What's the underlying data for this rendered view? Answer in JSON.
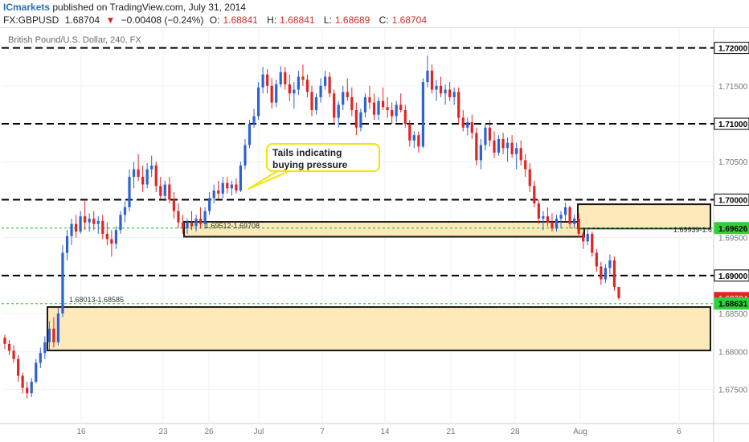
{
  "header": {
    "brand": "ICmarkets",
    "published_text": "published on TradingView.com, July 31, 2014",
    "symbol": "FX:GBPUSD",
    "last": "1.68704",
    "change": "−0.00408 (−0.24%)",
    "open_label": "O:",
    "open": "1.68841",
    "high_label": "H:",
    "high": "1.68841",
    "low_label": "L:",
    "low": "1.68689",
    "close_label": "C:",
    "close": "1.68704"
  },
  "chart_subtitle": "British Pound/U.S. Dollar, 240, FX",
  "annotation": {
    "callout_text": "Tails indicating buying pressure"
  },
  "colors": {
    "up": "#2d62d6",
    "down": "#e02424",
    "zone_fill": "#fde9b9",
    "zone_border": "#1a1a1a",
    "dashed_level": "#000000",
    "green_level": "#2fd13a",
    "callout_border": "#f2e600",
    "last_price_bg": "#e02424"
  },
  "chart_data": {
    "type": "candlestick",
    "x_ticks": [
      "16",
      "23",
      "26",
      "Jul",
      "7",
      "14",
      "21",
      "28",
      "Aug",
      "6"
    ],
    "y_ticks": [
      "1.67500",
      "1.68000",
      "1.68500",
      "1.69000",
      "1.69500",
      "1.70000",
      "1.70500",
      "1.71000",
      "1.71500",
      "1.72000"
    ],
    "ylim": [
      1.6705,
      1.7225
    ],
    "horizontal_levels": [
      {
        "value": "1.72000",
        "style": "dashed"
      },
      {
        "value": "1.71000",
        "style": "dashed"
      },
      {
        "value": "1.70000",
        "style": "dashed"
      },
      {
        "value": "1.69000",
        "style": "dashed"
      },
      {
        "value": "1.69626",
        "style": "green-dotted"
      },
      {
        "value": "1.68631",
        "style": "green-dotted"
      }
    ],
    "zones": [
      {
        "label": "1.69512-1.69708",
        "low": 1.69512,
        "high": 1.69708
      },
      {
        "label": "1.69939-1.6",
        "low": 1.6962,
        "high": 1.6994
      },
      {
        "label": "1.68013-1.68585",
        "low": 1.68013,
        "high": 1.68585
      }
    ],
    "price_labels": [
      {
        "text": "1.72000",
        "value": 1.72,
        "kind": "level"
      },
      {
        "text": "1.71000",
        "value": 1.71,
        "kind": "level"
      },
      {
        "text": "1.70000",
        "value": 1.7,
        "kind": "level"
      },
      {
        "text": "1.69626",
        "value": 1.69626,
        "kind": "green"
      },
      {
        "text": "1.69000",
        "value": 1.69,
        "kind": "level"
      },
      {
        "text": "1.68704",
        "value": 1.68704,
        "kind": "last"
      },
      {
        "text": "1.68631",
        "value": 1.68631,
        "kind": "green"
      }
    ],
    "candles": [
      {
        "o": 1.6818,
        "h": 1.6822,
        "l": 1.6803,
        "c": 1.681
      },
      {
        "o": 1.681,
        "h": 1.6815,
        "l": 1.6795,
        "c": 1.6801
      },
      {
        "o": 1.6801,
        "h": 1.6808,
        "l": 1.6785,
        "c": 1.679
      },
      {
        "o": 1.679,
        "h": 1.6795,
        "l": 1.676,
        "c": 1.6768
      },
      {
        "o": 1.6768,
        "h": 1.6772,
        "l": 1.6745,
        "c": 1.6752
      },
      {
        "o": 1.6752,
        "h": 1.676,
        "l": 1.6738,
        "c": 1.6745
      },
      {
        "o": 1.6745,
        "h": 1.6765,
        "l": 1.674,
        "c": 1.676
      },
      {
        "o": 1.676,
        "h": 1.679,
        "l": 1.6758,
        "c": 1.6785
      },
      {
        "o": 1.6785,
        "h": 1.6805,
        "l": 1.6778,
        "c": 1.6798
      },
      {
        "o": 1.6798,
        "h": 1.682,
        "l": 1.679,
        "c": 1.6812
      },
      {
        "o": 1.6812,
        "h": 1.684,
        "l": 1.6802,
        "c": 1.683
      },
      {
        "o": 1.683,
        "h": 1.6845,
        "l": 1.6805,
        "c": 1.6812
      },
      {
        "o": 1.6812,
        "h": 1.6858,
        "l": 1.6808,
        "c": 1.685
      },
      {
        "o": 1.685,
        "h": 1.694,
        "l": 1.6845,
        "c": 1.693
      },
      {
        "o": 1.693,
        "h": 1.696,
        "l": 1.692,
        "c": 1.6952
      },
      {
        "o": 1.6952,
        "h": 1.6975,
        "l": 1.694,
        "c": 1.6968
      },
      {
        "o": 1.6968,
        "h": 1.698,
        "l": 1.695,
        "c": 1.6958
      },
      {
        "o": 1.6958,
        "h": 1.6985,
        "l": 1.6955,
        "c": 1.6978
      },
      {
        "o": 1.6978,
        "h": 1.7,
        "l": 1.696,
        "c": 1.697
      },
      {
        "o": 1.697,
        "h": 1.6982,
        "l": 1.6958,
        "c": 1.6975
      },
      {
        "o": 1.6975,
        "h": 1.6985,
        "l": 1.696,
        "c": 1.6968
      },
      {
        "o": 1.6968,
        "h": 1.6978,
        "l": 1.6955,
        "c": 1.6972
      },
      {
        "o": 1.6972,
        "h": 1.698,
        "l": 1.6948,
        "c": 1.6955
      },
      {
        "o": 1.6955,
        "h": 1.697,
        "l": 1.694,
        "c": 1.6948
      },
      {
        "o": 1.6948,
        "h": 1.696,
        "l": 1.6925,
        "c": 1.6942
      },
      {
        "o": 1.6942,
        "h": 1.6965,
        "l": 1.6935,
        "c": 1.696
      },
      {
        "o": 1.696,
        "h": 1.6985,
        "l": 1.6955,
        "c": 1.698
      },
      {
        "o": 1.698,
        "h": 1.6998,
        "l": 1.697,
        "c": 1.699
      },
      {
        "o": 1.699,
        "h": 1.704,
        "l": 1.6985,
        "c": 1.703
      },
      {
        "o": 1.703,
        "h": 1.705,
        "l": 1.7015,
        "c": 1.704
      },
      {
        "o": 1.704,
        "h": 1.706,
        "l": 1.7025,
        "c": 1.703
      },
      {
        "o": 1.703,
        "h": 1.7045,
        "l": 1.701,
        "c": 1.702
      },
      {
        "o": 1.702,
        "h": 1.7048,
        "l": 1.7015,
        "c": 1.704
      },
      {
        "o": 1.704,
        "h": 1.7058,
        "l": 1.703,
        "c": 1.7045
      },
      {
        "o": 1.7045,
        "h": 1.705,
        "l": 1.701,
        "c": 1.7018
      },
      {
        "o": 1.7018,
        "h": 1.703,
        "l": 1.7,
        "c": 1.7005
      },
      {
        "o": 1.7005,
        "h": 1.7025,
        "l": 1.6998,
        "c": 1.702
      },
      {
        "o": 1.702,
        "h": 1.703,
        "l": 1.6995,
        "c": 1.7
      },
      {
        "o": 1.7,
        "h": 1.701,
        "l": 1.6975,
        "c": 1.6985
      },
      {
        "o": 1.6985,
        "h": 1.6995,
        "l": 1.6962,
        "c": 1.697
      },
      {
        "o": 1.697,
        "h": 1.698,
        "l": 1.6955,
        "c": 1.6962
      },
      {
        "o": 1.6962,
        "h": 1.6975,
        "l": 1.6955,
        "c": 1.697
      },
      {
        "o": 1.697,
        "h": 1.6985,
        "l": 1.696,
        "c": 1.6965
      },
      {
        "o": 1.6965,
        "h": 1.698,
        "l": 1.6958,
        "c": 1.6975
      },
      {
        "o": 1.6975,
        "h": 1.699,
        "l": 1.6962,
        "c": 1.6968
      },
      {
        "o": 1.6968,
        "h": 1.699,
        "l": 1.6962,
        "c": 1.6985
      },
      {
        "o": 1.6985,
        "h": 1.701,
        "l": 1.698,
        "c": 1.7002
      },
      {
        "o": 1.7002,
        "h": 1.702,
        "l": 1.6995,
        "c": 1.7012
      },
      {
        "o": 1.7012,
        "h": 1.7025,
        "l": 1.7,
        "c": 1.7008
      },
      {
        "o": 1.7008,
        "h": 1.703,
        "l": 1.7002,
        "c": 1.7022
      },
      {
        "o": 1.7022,
        "h": 1.703,
        "l": 1.7008,
        "c": 1.7015
      },
      {
        "o": 1.7015,
        "h": 1.7025,
        "l": 1.7005,
        "c": 1.702
      },
      {
        "o": 1.702,
        "h": 1.7028,
        "l": 1.7008,
        "c": 1.7012
      },
      {
        "o": 1.7012,
        "h": 1.705,
        "l": 1.701,
        "c": 1.7045
      },
      {
        "o": 1.7045,
        "h": 1.708,
        "l": 1.704,
        "c": 1.7072
      },
      {
        "o": 1.7072,
        "h": 1.7105,
        "l": 1.7068,
        "c": 1.71
      },
      {
        "o": 1.71,
        "h": 1.712,
        "l": 1.7095,
        "c": 1.711
      },
      {
        "o": 1.711,
        "h": 1.7155,
        "l": 1.7105,
        "c": 1.7148
      },
      {
        "o": 1.7148,
        "h": 1.7175,
        "l": 1.714,
        "c": 1.7165
      },
      {
        "o": 1.7165,
        "h": 1.7172,
        "l": 1.714,
        "c": 1.715
      },
      {
        "o": 1.715,
        "h": 1.716,
        "l": 1.712,
        "c": 1.7128
      },
      {
        "o": 1.7128,
        "h": 1.7158,
        "l": 1.7122,
        "c": 1.7152
      },
      {
        "o": 1.7152,
        "h": 1.7176,
        "l": 1.7148,
        "c": 1.7168
      },
      {
        "o": 1.7168,
        "h": 1.7175,
        "l": 1.7145,
        "c": 1.7152
      },
      {
        "o": 1.7152,
        "h": 1.7165,
        "l": 1.713,
        "c": 1.714
      },
      {
        "o": 1.714,
        "h": 1.7155,
        "l": 1.712,
        "c": 1.7145
      },
      {
        "o": 1.7145,
        "h": 1.717,
        "l": 1.7138,
        "c": 1.7162
      },
      {
        "o": 1.7162,
        "h": 1.7178,
        "l": 1.715,
        "c": 1.7158
      },
      {
        "o": 1.7158,
        "h": 1.7165,
        "l": 1.7135,
        "c": 1.7142
      },
      {
        "o": 1.7142,
        "h": 1.715,
        "l": 1.711,
        "c": 1.7118
      },
      {
        "o": 1.7118,
        "h": 1.714,
        "l": 1.7112,
        "c": 1.7135
      },
      {
        "o": 1.7135,
        "h": 1.716,
        "l": 1.7128,
        "c": 1.715
      },
      {
        "o": 1.715,
        "h": 1.717,
        "l": 1.7145,
        "c": 1.7162
      },
      {
        "o": 1.7162,
        "h": 1.7168,
        "l": 1.7135,
        "c": 1.714
      },
      {
        "o": 1.714,
        "h": 1.7145,
        "l": 1.71,
        "c": 1.7108
      },
      {
        "o": 1.7108,
        "h": 1.713,
        "l": 1.7095,
        "c": 1.7125
      },
      {
        "o": 1.7125,
        "h": 1.715,
        "l": 1.7118,
        "c": 1.7142
      },
      {
        "o": 1.7142,
        "h": 1.716,
        "l": 1.713,
        "c": 1.7135
      },
      {
        "o": 1.7135,
        "h": 1.7148,
        "l": 1.711,
        "c": 1.7118
      },
      {
        "o": 1.7118,
        "h": 1.7128,
        "l": 1.7085,
        "c": 1.7095
      },
      {
        "o": 1.7095,
        "h": 1.712,
        "l": 1.709,
        "c": 1.7115
      },
      {
        "o": 1.7115,
        "h": 1.714,
        "l": 1.7108,
        "c": 1.7135
      },
      {
        "o": 1.7135,
        "h": 1.715,
        "l": 1.712,
        "c": 1.7128
      },
      {
        "o": 1.7128,
        "h": 1.714,
        "l": 1.7105,
        "c": 1.7112
      },
      {
        "o": 1.7112,
        "h": 1.7135,
        "l": 1.7105,
        "c": 1.713
      },
      {
        "o": 1.713,
        "h": 1.7148,
        "l": 1.7118,
        "c": 1.7122
      },
      {
        "o": 1.7122,
        "h": 1.7135,
        "l": 1.7108,
        "c": 1.7118
      },
      {
        "o": 1.7118,
        "h": 1.7128,
        "l": 1.71,
        "c": 1.711
      },
      {
        "o": 1.711,
        "h": 1.713,
        "l": 1.7102,
        "c": 1.7125
      },
      {
        "o": 1.7125,
        "h": 1.714,
        "l": 1.7115,
        "c": 1.7118
      },
      {
        "o": 1.7118,
        "h": 1.7125,
        "l": 1.7095,
        "c": 1.71
      },
      {
        "o": 1.71,
        "h": 1.7105,
        "l": 1.707,
        "c": 1.7078
      },
      {
        "o": 1.7078,
        "h": 1.709,
        "l": 1.7068,
        "c": 1.7085
      },
      {
        "o": 1.7085,
        "h": 1.709,
        "l": 1.7062,
        "c": 1.707
      },
      {
        "o": 1.707,
        "h": 1.716,
        "l": 1.7068,
        "c": 1.7155
      },
      {
        "o": 1.7155,
        "h": 1.719,
        "l": 1.7148,
        "c": 1.717
      },
      {
        "o": 1.717,
        "h": 1.7178,
        "l": 1.714,
        "c": 1.7145
      },
      {
        "o": 1.7145,
        "h": 1.7158,
        "l": 1.713,
        "c": 1.715
      },
      {
        "o": 1.715,
        "h": 1.7162,
        "l": 1.7135,
        "c": 1.714
      },
      {
        "o": 1.714,
        "h": 1.7152,
        "l": 1.7125,
        "c": 1.7145
      },
      {
        "o": 1.7145,
        "h": 1.7155,
        "l": 1.713,
        "c": 1.7135
      },
      {
        "o": 1.7135,
        "h": 1.7148,
        "l": 1.7125,
        "c": 1.7142
      },
      {
        "o": 1.7142,
        "h": 1.7148,
        "l": 1.71,
        "c": 1.7108
      },
      {
        "o": 1.7108,
        "h": 1.7118,
        "l": 1.709,
        "c": 1.7095
      },
      {
        "o": 1.7095,
        "h": 1.7108,
        "l": 1.7085,
        "c": 1.7102
      },
      {
        "o": 1.7102,
        "h": 1.7112,
        "l": 1.708,
        "c": 1.7088
      },
      {
        "o": 1.7088,
        "h": 1.7095,
        "l": 1.7045,
        "c": 1.7052
      },
      {
        "o": 1.7052,
        "h": 1.708,
        "l": 1.704,
        "c": 1.7072
      },
      {
        "o": 1.7072,
        "h": 1.71,
        "l": 1.7065,
        "c": 1.7095
      },
      {
        "o": 1.7095,
        "h": 1.7105,
        "l": 1.707,
        "c": 1.7078
      },
      {
        "o": 1.7078,
        "h": 1.709,
        "l": 1.7055,
        "c": 1.7062
      },
      {
        "o": 1.7062,
        "h": 1.7085,
        "l": 1.7058,
        "c": 1.708
      },
      {
        "o": 1.708,
        "h": 1.7088,
        "l": 1.706,
        "c": 1.7068
      },
      {
        "o": 1.7068,
        "h": 1.7082,
        "l": 1.705,
        "c": 1.7075
      },
      {
        "o": 1.7075,
        "h": 1.7085,
        "l": 1.7055,
        "c": 1.706
      },
      {
        "o": 1.706,
        "h": 1.7075,
        "l": 1.704,
        "c": 1.7068
      },
      {
        "o": 1.7068,
        "h": 1.7078,
        "l": 1.7045,
        "c": 1.7052
      },
      {
        "o": 1.7052,
        "h": 1.706,
        "l": 1.703,
        "c": 1.704
      },
      {
        "o": 1.704,
        "h": 1.7048,
        "l": 1.701,
        "c": 1.7018
      },
      {
        "o": 1.7018,
        "h": 1.7025,
        "l": 1.699,
        "c": 1.6995
      },
      {
        "o": 1.6995,
        "h": 1.7,
        "l": 1.6968,
        "c": 1.6975
      },
      {
        "o": 1.6975,
        "h": 1.6985,
        "l": 1.696,
        "c": 1.6978
      },
      {
        "o": 1.6978,
        "h": 1.699,
        "l": 1.6965,
        "c": 1.697
      },
      {
        "o": 1.697,
        "h": 1.6982,
        "l": 1.6958,
        "c": 1.6962
      },
      {
        "o": 1.6962,
        "h": 1.698,
        "l": 1.6958,
        "c": 1.6975
      },
      {
        "o": 1.6975,
        "h": 1.6985,
        "l": 1.6962,
        "c": 1.698
      },
      {
        "o": 1.698,
        "h": 1.6996,
        "l": 1.6972,
        "c": 1.699
      },
      {
        "o": 1.699,
        "h": 1.6992,
        "l": 1.6962,
        "c": 1.6968
      },
      {
        "o": 1.6968,
        "h": 1.698,
        "l": 1.6962,
        "c": 1.6975
      },
      {
        "o": 1.6975,
        "h": 1.6982,
        "l": 1.695,
        "c": 1.6955
      },
      {
        "o": 1.6955,
        "h": 1.6958,
        "l": 1.6935,
        "c": 1.6945
      },
      {
        "o": 1.6945,
        "h": 1.6962,
        "l": 1.694,
        "c": 1.6955
      },
      {
        "o": 1.6955,
        "h": 1.6958,
        "l": 1.6925,
        "c": 1.693
      },
      {
        "o": 1.693,
        "h": 1.6935,
        "l": 1.6905,
        "c": 1.6912
      },
      {
        "o": 1.6912,
        "h": 1.6918,
        "l": 1.6888,
        "c": 1.6895
      },
      {
        "o": 1.6895,
        "h": 1.6915,
        "l": 1.689,
        "c": 1.691
      },
      {
        "o": 1.691,
        "h": 1.6928,
        "l": 1.6902,
        "c": 1.692
      },
      {
        "o": 1.692,
        "h": 1.6925,
        "l": 1.688,
        "c": 1.6885
      },
      {
        "o": 1.6885,
        "h": 1.6885,
        "l": 1.6868,
        "c": 1.68704
      }
    ]
  }
}
